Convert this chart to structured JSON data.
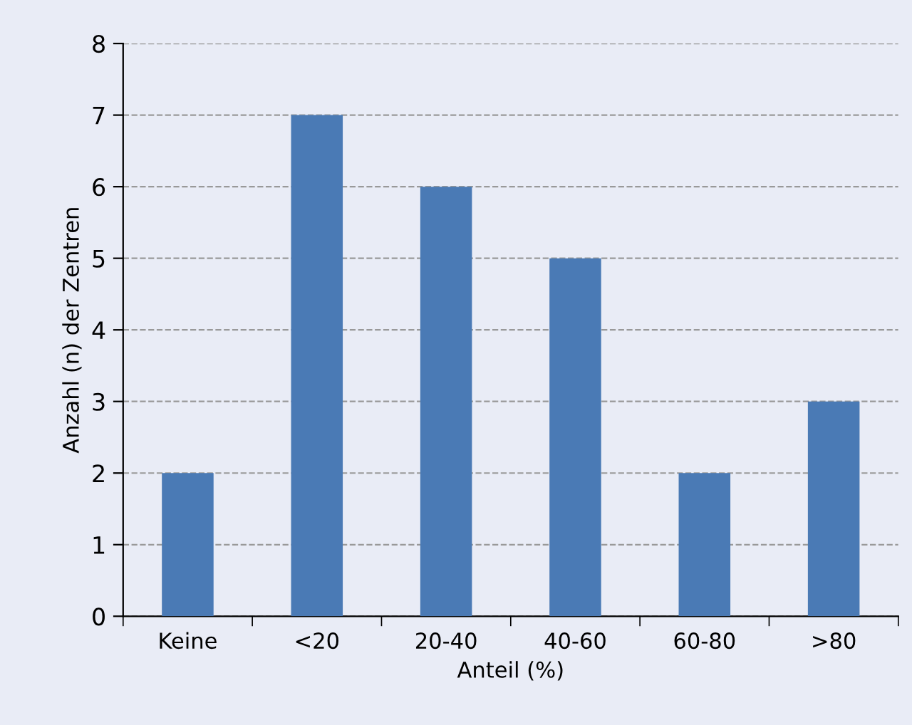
{
  "chart_data": {
    "type": "bar",
    "xlabel": "Anteil (%)",
    "ylabel": "Anzahl (n) der Zentren",
    "categories": [
      "Keine",
      "<20",
      "20-40",
      "40-60",
      "60-80",
      ">80"
    ],
    "values": [
      2,
      7,
      6,
      5,
      2,
      3
    ],
    "color": "#4a7ab5",
    "ylim": [
      0,
      8
    ],
    "yticks": [
      0,
      1,
      2,
      3,
      4,
      5,
      6,
      7,
      8
    ],
    "grid": "y"
  }
}
